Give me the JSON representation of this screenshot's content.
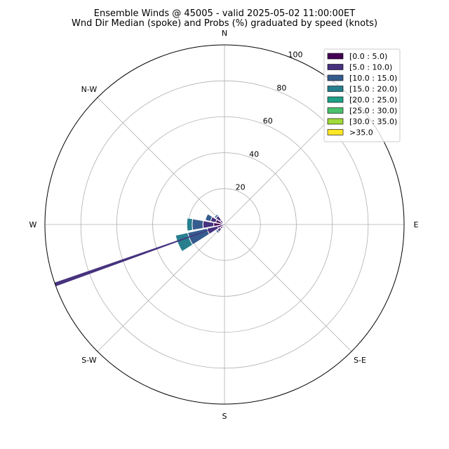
{
  "chart_data": {
    "type": "windrose",
    "title_line1": "Ensemble Winds @ 45005 - valid 2025-05-02 11:00:00ET",
    "title_line2": "Wnd Dir Median (spoke) and Probs (%) graduated by speed (knots)",
    "directions": [
      "N",
      "N-E",
      "E",
      "S-E",
      "S",
      "S-W",
      "W",
      "N-W"
    ],
    "direction_labels": [
      {
        "label": "N",
        "angle": 0
      },
      {
        "label": "E",
        "angle": 90
      },
      {
        "label": "S-E",
        "angle": 135
      },
      {
        "label": "S",
        "angle": 180
      },
      {
        "label": "S-W",
        "angle": 225
      },
      {
        "label": "W",
        "angle": 270
      },
      {
        "label": "N-W",
        "angle": 315
      }
    ],
    "radial_ticks": [
      20,
      40,
      60,
      80,
      100
    ],
    "rmax": 100,
    "speed_bins": [
      {
        "label": "[0.0 : 5.0)",
        "color": "#440154"
      },
      {
        "label": "[5.0 : 10.0)",
        "color": "#46327e"
      },
      {
        "label": "[10.0 : 15.0)",
        "color": "#365c8d"
      },
      {
        "label": "[15.0 : 20.0)",
        "color": "#277f8e"
      },
      {
        "label": "[20.0 : 25.0)",
        "color": "#1fa187"
      },
      {
        "label": "[25.0 : 30.0)",
        "color": "#4ac16d"
      },
      {
        "label": "[30.0 : 35.0)",
        "color": "#a0da39"
      },
      {
        "label": ">35.0",
        "color": "#fde725"
      }
    ],
    "sectors": [
      {
        "dir_deg": 247.5,
        "cumulative": [
          4,
          10,
          21,
          28
        ]
      },
      {
        "dir_deg": 270.0,
        "cumulative": [
          6,
          12,
          18,
          21
        ]
      },
      {
        "dir_deg": 292.5,
        "cumulative": [
          5,
          8,
          11
        ]
      },
      {
        "dir_deg": 315.0,
        "cumulative": [
          3,
          6,
          7
        ]
      },
      {
        "dir_deg": 225.0,
        "cumulative": [
          3,
          5,
          6
        ]
      },
      {
        "dir_deg": 202.5,
        "cumulative": [
          1,
          2
        ]
      },
      {
        "dir_deg": 337.5,
        "cumulative": [
          1
        ]
      }
    ],
    "median_spoke": {
      "dir_deg": 250.5,
      "length": 100,
      "color": "#46327e"
    },
    "grid": true,
    "legend_position": "top-right"
  }
}
